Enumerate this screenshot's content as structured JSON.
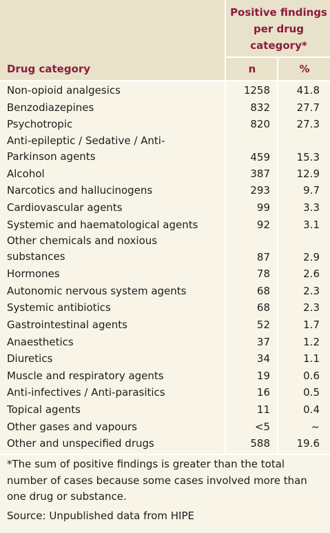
{
  "table": {
    "header": {
      "group": "Positive findings per drug category*",
      "columns": [
        "Drug category",
        "n",
        "%"
      ]
    },
    "rows": [
      [
        "Non-opioid analgesics",
        1258,
        41.8
      ],
      [
        "Benzodiazepines",
        832,
        27.7
      ],
      [
        "Psychotropic",
        820,
        27.3
      ],
      [
        [
          "Anti-epileptic / Sedative / Anti-",
          "Parkinson agents"
        ],
        459,
        15.3
      ],
      [
        "Alcohol",
        387,
        12.9
      ],
      [
        "Narcotics and hallucinogens",
        293,
        9.7
      ],
      [
        "Cardiovascular agents",
        99,
        3.3
      ],
      [
        "Systemic and haematological agents",
        92,
        3.1
      ],
      [
        [
          "Other chemicals and noxious",
          "substances"
        ],
        87,
        2.9
      ],
      [
        "Hormones",
        78,
        2.6
      ],
      [
        "Autonomic nervous system agents",
        68,
        2.3
      ],
      [
        "Systemic antibiotics",
        68,
        2.3
      ],
      [
        "Gastrointestinal agents",
        52,
        1.7
      ],
      [
        "Anaesthetics",
        37,
        1.2
      ],
      [
        "Diuretics",
        34,
        1.1
      ],
      [
        "Muscle and respiratory agents",
        19,
        0.6
      ],
      [
        "Anti-infectives / Anti-parasitics",
        16,
        0.5
      ],
      [
        "Topical agents",
        11,
        0.4
      ],
      [
        "Other gases and vapours",
        "<5",
        "~"
      ],
      [
        "Other and unspecified drugs",
        588,
        19.6
      ]
    ],
    "footnote": "*The sum of positive findings is greater than the total number of cases because some cases involved more than one drug or substance.",
    "source": "Source: Unpublished data from HIPE"
  }
}
